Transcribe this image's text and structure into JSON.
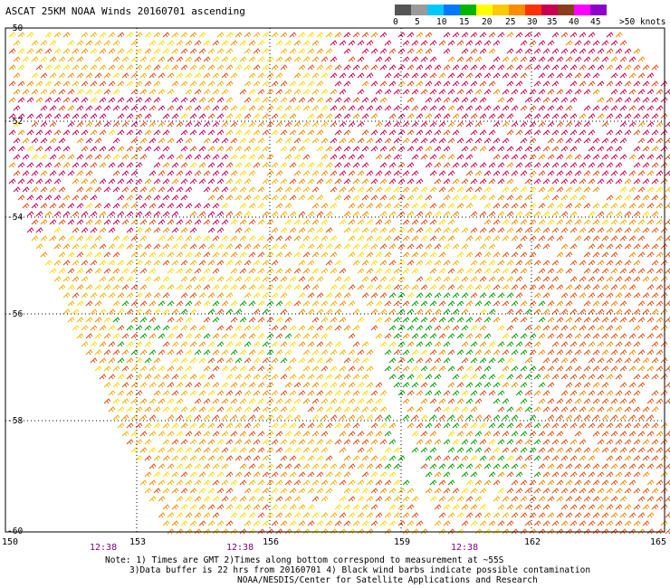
{
  "title": "ASCAT 25KM NOAA Winds 20160701 ascending",
  "speed_scale": {
    "labels": [
      "0",
      "5",
      "10",
      "15",
      "20",
      "25",
      "30",
      "35",
      "40",
      "45",
      ">50 knots"
    ],
    "colors": [
      "#555555",
      "#9a9a9a",
      "#00c8ff",
      "#0078ff",
      "#00b400",
      "#ffff00",
      "#ffc800",
      "#ff8c00",
      "#ff3200",
      "#c80050",
      "#8c3c1e",
      "#ff00ff",
      "#8c00c8"
    ]
  },
  "lat_labels": [
    "-50",
    "-52",
    "-54",
    "-56",
    "-58",
    "-60"
  ],
  "lon_labels": [
    "150",
    "153",
    "156",
    "159",
    "162",
    "165"
  ],
  "time_labels": [
    "12:38",
    "12:38",
    "12:38"
  ],
  "notes": [
    "Note: 1) Times are GMT 2)Times along bottom correspond to measurement at ~55S",
    "3)Data buffer is 22 hrs from 20160701 4) Black wind barbs indicate possible contamination",
    "NOAA/NESDIS/Center for Satellite Applications and Research"
  ]
}
